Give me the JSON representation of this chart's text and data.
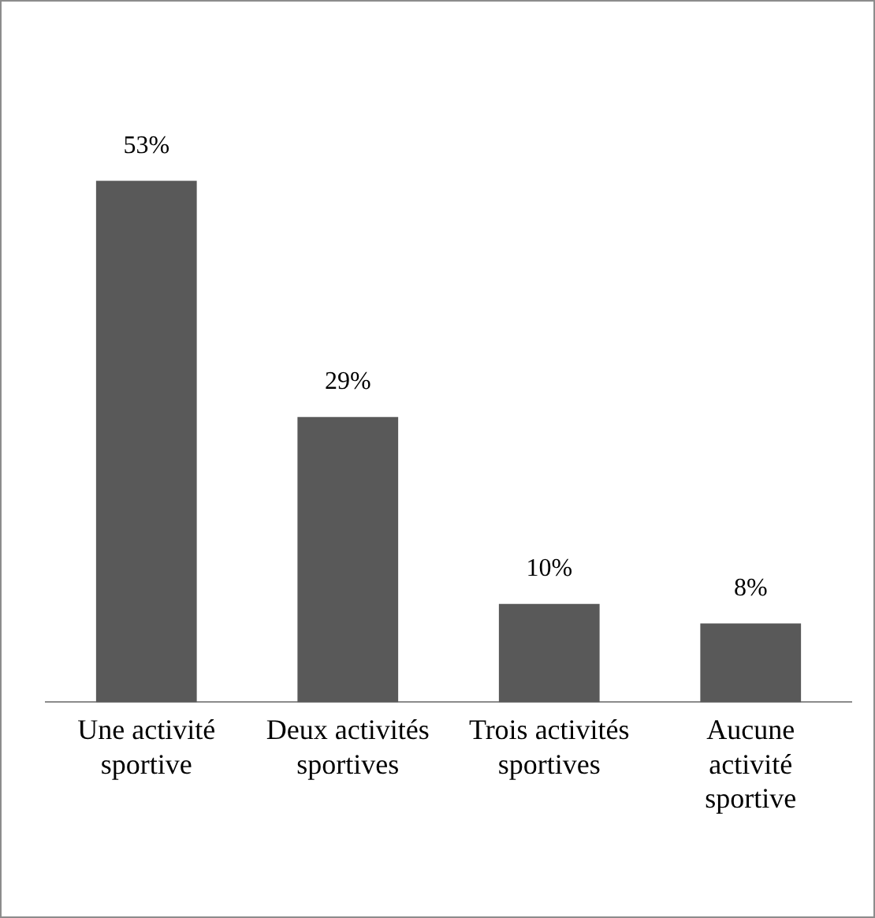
{
  "chart_data": {
    "type": "bar",
    "categories": [
      "Une activité sportive",
      "Deux activités sportives",
      "Trois activités sportives",
      "Aucune activité sportive"
    ],
    "values": [
      53,
      29,
      10,
      8
    ],
    "value_labels": [
      "53%",
      "29%",
      "10%",
      "8%"
    ],
    "color": "#595959",
    "grid": false,
    "legend": false
  }
}
